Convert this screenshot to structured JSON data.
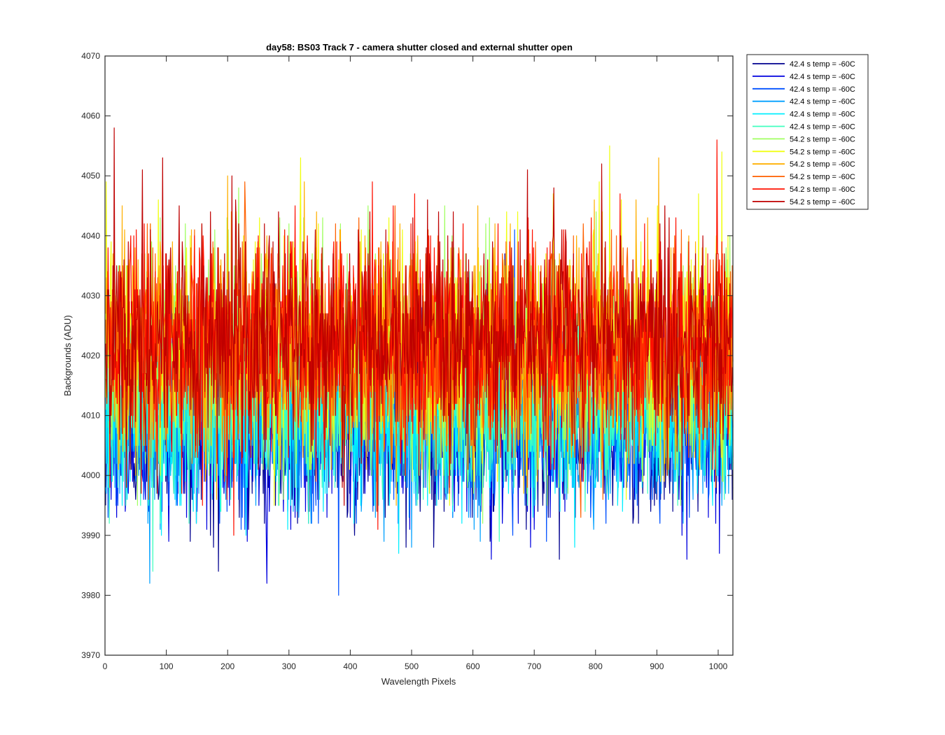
{
  "chart_data": {
    "type": "line",
    "title": "day58: BS03  Track 7 - camera shutter closed and external shutter open",
    "xlabel": "Wavelength Pixels",
    "ylabel": "Backgrounds (ADU)",
    "xlim": [
      0,
      1024
    ],
    "ylim": [
      3970,
      4070
    ],
    "xticks": [
      0,
      100,
      200,
      300,
      400,
      500,
      600,
      700,
      800,
      900,
      1000
    ],
    "yticks": [
      3970,
      3980,
      3990,
      4000,
      4010,
      4020,
      4030,
      4040,
      4050,
      4060,
      4070
    ],
    "grid": false,
    "legend_position": "outside-top-right",
    "x_range": [
      1,
      1024
    ],
    "series": [
      {
        "name": "42.4 s temp = -60C",
        "color": "#00008F",
        "mean": 4008,
        "spread": 7.5
      },
      {
        "name": "42.4 s temp = -60C",
        "color": "#0000DF",
        "mean": 4009,
        "spread": 7.5
      },
      {
        "name": "42.4 s temp = -60C",
        "color": "#0050FF",
        "mean": 4010,
        "spread": 7.5
      },
      {
        "name": "42.4 s temp = -60C",
        "color": "#00A0FF",
        "mean": 4010,
        "spread": 7.5
      },
      {
        "name": "42.4 s temp = -60C",
        "color": "#00EFFF",
        "mean": 4011,
        "spread": 7.5
      },
      {
        "name": "42.4 s temp = -60C",
        "color": "#40FFBF",
        "mean": 4012,
        "spread": 7.5
      },
      {
        "name": "54.2 s temp = -60C",
        "color": "#A0FF60",
        "mean": 4020,
        "spread": 9
      },
      {
        "name": "54.2 s temp = -60C",
        "color": "#F0FF10",
        "mean": 4021,
        "spread": 9
      },
      {
        "name": "54.2 s temp = -60C",
        "color": "#FFAF00",
        "mean": 4021,
        "spread": 9
      },
      {
        "name": "54.2 s temp = -60C",
        "color": "#FF6000",
        "mean": 4022,
        "spread": 9
      },
      {
        "name": "54.2 s temp = -60C",
        "color": "#FF1000",
        "mean": 4022,
        "spread": 9
      },
      {
        "name": "54.2 s temp = -60C",
        "color": "#BF0000",
        "mean": 4023,
        "spread": 9
      }
    ]
  }
}
